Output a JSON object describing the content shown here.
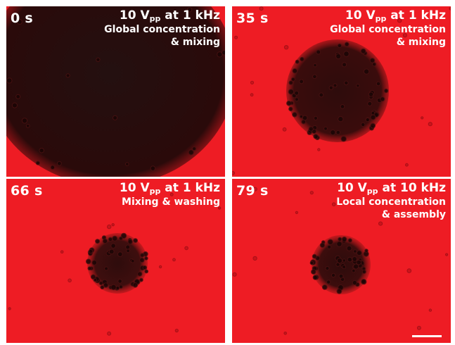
{
  "colors": {
    "background": "#ee1c24",
    "dark_region": "#2a0808",
    "text": "#ffffff"
  },
  "panels": [
    {
      "time": "0 s",
      "condition": {
        "amplitude": "10 V",
        "subscript": "pp",
        "frequency": "at 1 kHz"
      },
      "description": [
        "Global concentration",
        "& mixing"
      ]
    },
    {
      "time": "35 s",
      "condition": {
        "amplitude": "10 V",
        "subscript": "pp",
        "frequency": "at 1 kHz"
      },
      "description": [
        "Global concentration",
        "& mixing"
      ]
    },
    {
      "time": "66 s",
      "condition": {
        "amplitude": "10 V",
        "subscript": "pp",
        "frequency": "at 1 kHz"
      },
      "description": [
        "Mixing & washing"
      ]
    },
    {
      "time": "79 s",
      "condition": {
        "amplitude": "10 V",
        "subscript": "pp",
        "frequency": "at 10 kHz"
      },
      "description": [
        "Local concentration",
        "& assembly"
      ]
    }
  ]
}
